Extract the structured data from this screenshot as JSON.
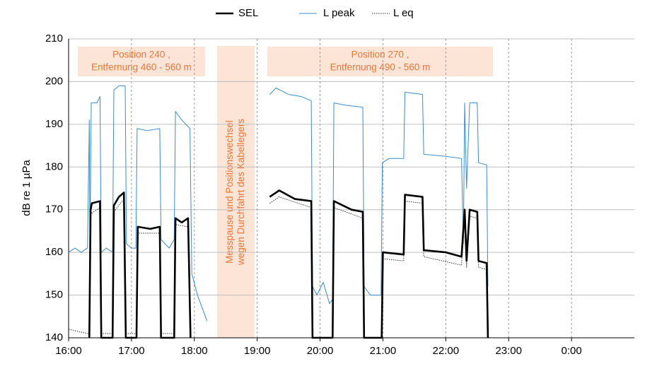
{
  "chart_data": {
    "type": "line",
    "ylabel": "dB re 1 µPa",
    "xlim": [
      16,
      25
    ],
    "xticks": [
      {
        "value": 16,
        "label": "16:00"
      },
      {
        "value": 17,
        "label": "17:00"
      },
      {
        "value": 18,
        "label": "18:00"
      },
      {
        "value": 19,
        "label": "19:00"
      },
      {
        "value": 20,
        "label": "20:00"
      },
      {
        "value": 21,
        "label": "21:00"
      },
      {
        "value": 22,
        "label": "22:00"
      },
      {
        "value": 23,
        "label": "23:00"
      },
      {
        "value": 24,
        "label": "0:00"
      }
    ],
    "ylim": [
      140,
      210
    ],
    "yticks": [
      140,
      150,
      160,
      170,
      180,
      190,
      200,
      210
    ],
    "grid": true,
    "legend": "top",
    "annotations": [
      {
        "lines": [
          "Position 240 ,",
          "Entfernung 460 - 560 m"
        ]
      },
      {
        "lines": [
          "Messpause und Positionswechsel",
          "wegen Durchfahrt des Kabellegers"
        ]
      },
      {
        "lines": [
          "Position 270 ,",
          "Entfernung 490 - 560 m"
        ]
      }
    ],
    "series": [
      {
        "name": "SEL",
        "color": "#000000",
        "style": "solid-thick",
        "x": [
          16.33,
          16.35,
          16.37,
          16.5,
          16.52,
          16.7,
          16.72,
          16.8,
          16.88,
          16.91,
          17.08,
          17.1,
          17.3,
          17.45,
          17.47,
          17.68,
          17.7,
          17.8,
          17.9,
          17.94,
          18.5,
          19.2,
          19.35,
          19.6,
          19.86,
          19.88,
          20.2,
          20.22,
          20.5,
          20.68,
          20.7,
          20.98,
          21.0,
          21.33,
          21.35,
          21.63,
          21.65,
          22.0,
          22.25,
          22.3,
          22.33,
          22.38,
          22.5,
          22.52,
          22.65,
          22.67
        ],
        "values": [
          140,
          170,
          171.5,
          172,
          140,
          140,
          171,
          173,
          174,
          140,
          140,
          166,
          165.5,
          166,
          140,
          140,
          168,
          167,
          168,
          140,
          null,
          173,
          174.5,
          172.5,
          172,
          140,
          140,
          172,
          170,
          169.5,
          140,
          140,
          160,
          159.5,
          173.5,
          173,
          160.5,
          160,
          159,
          170,
          158,
          170,
          169.5,
          158,
          157.5,
          140
        ]
      },
      {
        "name": "L peak",
        "color": "#3d8bc9",
        "style": "solid",
        "x": [
          16.0,
          16.1,
          16.2,
          16.3,
          16.33,
          16.34,
          16.36,
          16.45,
          16.5,
          16.52,
          16.6,
          16.7,
          16.72,
          16.8,
          16.9,
          16.92,
          17.0,
          17.07,
          17.09,
          17.25,
          17.45,
          17.47,
          17.6,
          17.68,
          17.7,
          17.8,
          17.93,
          17.96,
          18.05,
          18.15,
          18.2,
          18.5,
          19.2,
          19.3,
          19.5,
          19.7,
          19.86,
          19.88,
          19.95,
          20.05,
          20.15,
          20.2,
          20.22,
          20.4,
          20.68,
          20.7,
          20.8,
          20.97,
          20.99,
          21.1,
          21.33,
          21.35,
          21.63,
          21.65,
          22.0,
          22.25,
          22.28,
          22.3,
          22.33,
          22.38,
          22.5,
          22.52,
          22.65,
          22.67
        ],
        "values": [
          160,
          161,
          160,
          161,
          191,
          160,
          195,
          195,
          196.5,
          160,
          161,
          160,
          198,
          199,
          199,
          162,
          161,
          161,
          189,
          188.5,
          189,
          163,
          161,
          163,
          193,
          191,
          189,
          155,
          150,
          146,
          144,
          null,
          197,
          198.5,
          197,
          196.5,
          195.5,
          152,
          150,
          153,
          148,
          149,
          195,
          194.5,
          194,
          152,
          150,
          150,
          181,
          182,
          182,
          197.5,
          197,
          183,
          182.5,
          182,
          162,
          195,
          175,
          195,
          195,
          181,
          180.5,
          152
        ]
      },
      {
        "name": "L eq",
        "color": "#333333",
        "style": "dotted",
        "x": [
          16.0,
          16.3,
          16.33,
          16.35,
          16.5,
          16.52,
          16.7,
          16.72,
          16.88,
          16.91,
          17.08,
          17.1,
          17.45,
          17.47,
          17.68,
          17.7,
          17.9,
          17.94,
          18.5,
          19.2,
          19.35,
          19.86,
          19.88,
          20.2,
          20.22,
          20.68,
          20.7,
          20.98,
          21.0,
          21.33,
          21.35,
          21.63,
          21.65,
          22.25,
          22.3,
          22.33,
          22.38,
          22.5,
          22.52,
          22.65,
          22.67
        ],
        "values": [
          142,
          141,
          141,
          169,
          170.5,
          141,
          141,
          169.5,
          172.5,
          141,
          141,
          164.5,
          164.5,
          141,
          141,
          166.5,
          166,
          141,
          null,
          171.5,
          173,
          170.5,
          140,
          140,
          170.5,
          168,
          140,
          140,
          158.5,
          158,
          172,
          171.5,
          159,
          157,
          168.5,
          156.5,
          168.5,
          168,
          156.5,
          156,
          140
        ]
      }
    ]
  }
}
